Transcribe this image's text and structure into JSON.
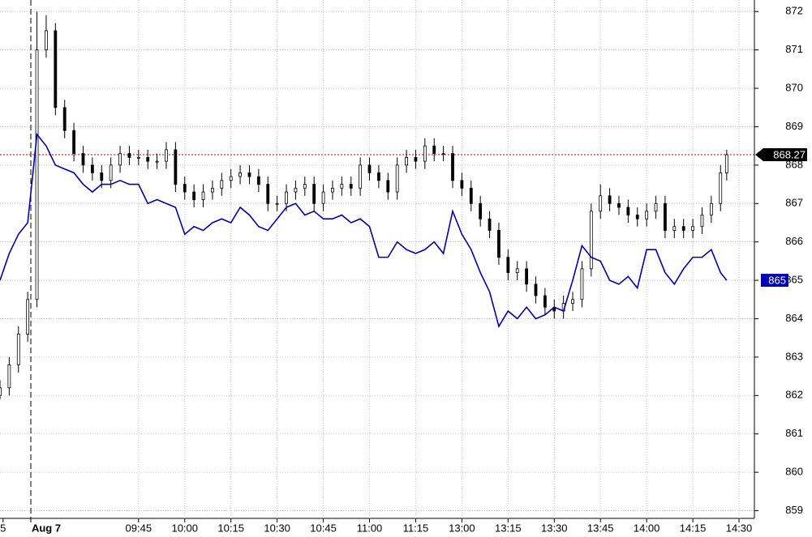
{
  "chart_data": {
    "type": "candlestick",
    "x": [
      0,
      3,
      6,
      9,
      12,
      15,
      18,
      21,
      24,
      27,
      30,
      33,
      36,
      39,
      42,
      45,
      48,
      51,
      54,
      57,
      60,
      63,
      66,
      69,
      72,
      75,
      78,
      81,
      84,
      87,
      90,
      93,
      96,
      99,
      102,
      105,
      108,
      111,
      114,
      117,
      120,
      123,
      126,
      129,
      132,
      135,
      138,
      141,
      144,
      147,
      150,
      153,
      156,
      159,
      162,
      165,
      168,
      171,
      174,
      177,
      180,
      183,
      186,
      189,
      192,
      195,
      198,
      201,
      204,
      207,
      210,
      213,
      216,
      219,
      222,
      225,
      228,
      231,
      234,
      236
    ],
    "open": [
      862.0,
      862.2,
      862.8,
      863.6,
      864.5,
      871.0,
      871.5,
      869.5,
      868.9,
      868.3,
      868.0,
      867.8,
      867.6,
      868.0,
      868.3,
      868.2,
      868.2,
      868.1,
      868.1,
      868.4,
      867.5,
      867.3,
      867.1,
      867.3,
      867.4,
      867.6,
      867.7,
      867.8,
      867.7,
      867.5,
      867.0,
      867.0,
      867.3,
      867.4,
      867.5,
      867.0,
      867.3,
      867.4,
      867.5,
      867.4,
      868.0,
      867.8,
      867.6,
      867.3,
      868.0,
      868.2,
      868.1,
      868.5,
      868.3,
      868.3,
      867.6,
      867.4,
      867.0,
      866.6,
      866.3,
      865.6,
      865.2,
      865.3,
      864.9,
      864.6,
      864.3,
      864.2,
      864.4,
      864.5,
      865.3,
      866.8,
      867.2,
      867.0,
      866.9,
      866.7,
      866.6,
      866.8,
      867.0,
      866.3,
      866.4,
      866.3,
      866.4,
      866.7,
      867.0,
      867.8
    ],
    "high": [
      862.4,
      863.0,
      863.8,
      864.7,
      872.0,
      871.9,
      871.7,
      869.7,
      869.1,
      868.5,
      868.2,
      868.0,
      868.2,
      868.5,
      868.5,
      868.4,
      868.4,
      868.3,
      868.6,
      868.6,
      867.7,
      867.5,
      867.5,
      867.6,
      867.8,
      867.9,
      868.0,
      868.0,
      867.9,
      867.7,
      867.2,
      867.5,
      867.6,
      867.7,
      867.7,
      867.5,
      867.6,
      867.7,
      867.7,
      868.2,
      868.2,
      868.0,
      867.8,
      868.2,
      868.4,
      868.4,
      868.7,
      868.7,
      868.5,
      868.5,
      867.8,
      867.6,
      867.2,
      866.8,
      866.5,
      865.8,
      865.5,
      865.5,
      865.1,
      864.8,
      864.5,
      864.6,
      864.7,
      865.5,
      867.0,
      867.5,
      867.4,
      867.2,
      867.1,
      866.9,
      867.0,
      867.2,
      867.2,
      866.6,
      866.6,
      866.6,
      866.9,
      867.2,
      868.0,
      868.4
    ],
    "low": [
      861.9,
      862.0,
      862.6,
      863.4,
      864.3,
      870.8,
      869.3,
      868.7,
      868.1,
      867.8,
      867.6,
      867.4,
      867.4,
      867.8,
      868.0,
      868.0,
      867.9,
      867.9,
      867.9,
      867.3,
      867.1,
      866.9,
      866.9,
      867.1,
      867.2,
      867.4,
      867.5,
      867.5,
      867.3,
      866.8,
      866.8,
      866.8,
      867.1,
      867.2,
      866.8,
      866.8,
      867.1,
      867.2,
      867.2,
      867.2,
      867.6,
      867.4,
      867.1,
      867.1,
      867.8,
      867.9,
      867.9,
      868.1,
      868.1,
      867.4,
      867.2,
      866.8,
      866.4,
      866.1,
      865.4,
      865.0,
      865.0,
      864.7,
      864.4,
      864.1,
      864.0,
      864.0,
      864.2,
      864.3,
      865.1,
      866.6,
      866.8,
      866.7,
      866.5,
      866.4,
      866.4,
      866.6,
      866.1,
      866.1,
      866.1,
      866.1,
      866.2,
      866.5,
      866.8,
      867.6
    ],
    "close": [
      862.2,
      862.8,
      863.6,
      864.5,
      871.0,
      871.5,
      869.5,
      868.9,
      868.3,
      868.0,
      867.8,
      867.6,
      868.0,
      868.3,
      868.2,
      868.2,
      868.1,
      868.1,
      868.4,
      867.5,
      867.3,
      867.1,
      867.3,
      867.4,
      867.6,
      867.7,
      867.8,
      867.7,
      867.5,
      867.0,
      867.0,
      867.3,
      867.4,
      867.5,
      867.0,
      867.3,
      867.4,
      867.5,
      867.4,
      868.0,
      867.8,
      867.6,
      867.3,
      868.0,
      868.2,
      868.1,
      868.5,
      868.3,
      868.3,
      867.6,
      867.4,
      867.0,
      866.6,
      866.3,
      865.6,
      865.2,
      865.3,
      864.9,
      864.6,
      864.3,
      864.2,
      864.4,
      864.5,
      865.3,
      866.8,
      867.2,
      867.0,
      866.9,
      866.7,
      866.6,
      866.8,
      867.0,
      866.3,
      866.4,
      866.3,
      866.4,
      866.7,
      867.0,
      867.8,
      868.27
    ],
    "candle_color": "#000000",
    "line": {
      "color": "#0000b4",
      "values": [
        865.0,
        865.7,
        866.2,
        866.5,
        868.8,
        868.5,
        868.0,
        867.9,
        867.8,
        867.5,
        867.3,
        867.5,
        867.5,
        867.6,
        867.5,
        867.5,
        867.0,
        867.1,
        867.0,
        866.9,
        866.2,
        866.4,
        866.3,
        866.5,
        866.6,
        866.5,
        866.9,
        866.7,
        866.4,
        866.3,
        866.6,
        866.9,
        867.0,
        866.7,
        866.8,
        866.6,
        866.6,
        866.7,
        866.5,
        866.6,
        866.4,
        865.6,
        865.6,
        866.0,
        865.8,
        865.7,
        865.8,
        866.0,
        865.7,
        866.8,
        866.2,
        865.8,
        865.2,
        864.7,
        863.8,
        864.2,
        864.0,
        864.3,
        864.0,
        864.1,
        864.3,
        864.2,
        865.0,
        865.9,
        865.6,
        865.5,
        865.0,
        864.9,
        865.1,
        864.8,
        865.8,
        865.8,
        865.2,
        864.9,
        865.3,
        865.6,
        865.6,
        865.8,
        865.2,
        865.0
      ]
    },
    "last_price_line_color": "#cc0000",
    "xlim": [
      0,
      245
    ],
    "xticks": [
      {
        "value": 1,
        "label": "5"
      },
      {
        "value": 10,
        "label": "Aug 7"
      },
      {
        "value": 45,
        "label": "09:45"
      },
      {
        "value": 60,
        "label": "10:00"
      },
      {
        "value": 75,
        "label": "10:15"
      },
      {
        "value": 90,
        "label": "10:30"
      },
      {
        "value": 105,
        "label": "10:45"
      },
      {
        "value": 120,
        "label": "11:00"
      },
      {
        "value": 135,
        "label": "11:15"
      },
      {
        "value": 150,
        "label": "13:00"
      },
      {
        "value": 165,
        "label": "13:15"
      },
      {
        "value": 180,
        "label": "13:30"
      },
      {
        "value": 195,
        "label": "13:45"
      },
      {
        "value": 210,
        "label": "14:00"
      },
      {
        "value": 225,
        "label": "14:15"
      },
      {
        "value": 240,
        "label": "14:30"
      }
    ],
    "ylim": [
      858.8,
      872.3
    ],
    "yticks": [
      859,
      860,
      861,
      862,
      863,
      864,
      865,
      866,
      867,
      868,
      869,
      870,
      871,
      872
    ],
    "grid": true
  }
}
